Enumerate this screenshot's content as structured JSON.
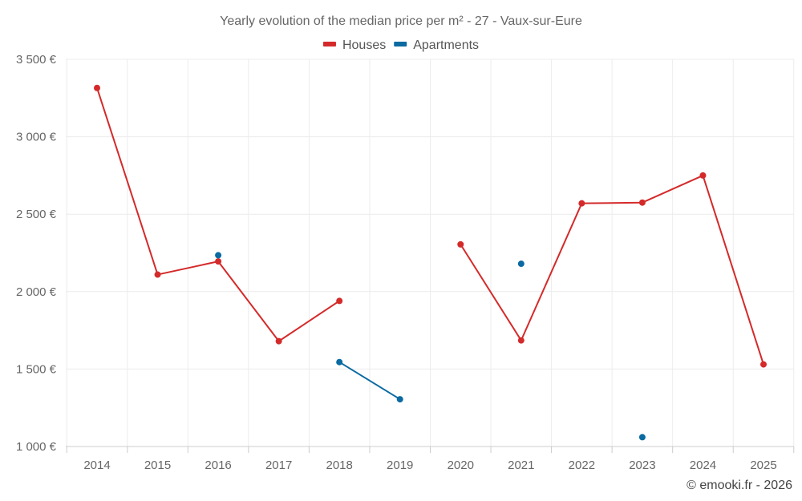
{
  "chart_data": {
    "type": "line",
    "title": "Yearly evolution of the median price per m² - 27 - Vaux-sur-Eure",
    "xlabel": "",
    "ylabel": "",
    "categories": [
      "2014",
      "2015",
      "2016",
      "2017",
      "2018",
      "2019",
      "2020",
      "2021",
      "2022",
      "2023",
      "2024",
      "2025"
    ],
    "ylim": [
      1000,
      3500
    ],
    "yticks": [
      1000,
      1500,
      2000,
      2500,
      3000,
      3500
    ],
    "ytick_labels": [
      "1 000 €",
      "1 500 €",
      "2 000 €",
      "2 500 €",
      "3 000 €",
      "3 500 €"
    ],
    "grid": true,
    "legend_position": "top-center",
    "series": [
      {
        "name": "Houses",
        "color": "#d42a2a",
        "values": [
          3315,
          2110,
          2195,
          1680,
          1940,
          null,
          2305,
          1685,
          2570,
          2575,
          2750,
          1530
        ]
      },
      {
        "name": "Apartments",
        "color": "#0a6aa1",
        "values": [
          null,
          null,
          2235,
          null,
          1545,
          1305,
          null,
          2180,
          null,
          1060,
          null,
          null
        ]
      }
    ]
  },
  "copyright": "© emooki.fr - 2026"
}
